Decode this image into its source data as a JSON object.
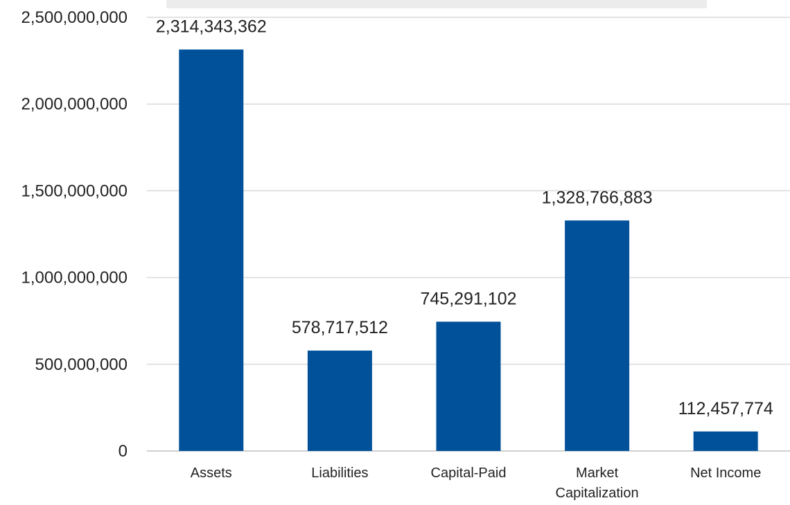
{
  "chart_data": {
    "type": "bar",
    "title": "",
    "xlabel": "",
    "ylabel": "",
    "categories": [
      "Assets",
      "Liabilities",
      "Capital-Paid",
      "Market Capitalization",
      "Net Income"
    ],
    "category_lines": [
      [
        "Assets"
      ],
      [
        "Liabilities"
      ],
      [
        "Capital-Paid"
      ],
      [
        "Market",
        "Capitalization"
      ],
      [
        "Net Income"
      ]
    ],
    "values": [
      2314343362,
      578717512,
      745291102,
      1328766883,
      112457774
    ],
    "data_labels": [
      "2,314,343,362",
      "578,717,512",
      "745,291,102",
      "1,328,766,883",
      "112,457,774"
    ],
    "ylim": [
      0,
      2500000000
    ],
    "yticks": [
      0,
      500000000,
      1000000000,
      1500000000,
      2000000000,
      2500000000
    ],
    "ytick_labels": [
      "0",
      "500,000,000",
      "1,000,000,000",
      "1,500,000,000",
      "2,000,000,000",
      "2,500,000,000"
    ],
    "grid": true,
    "legend": "none",
    "bar_color": "#00519a"
  }
}
